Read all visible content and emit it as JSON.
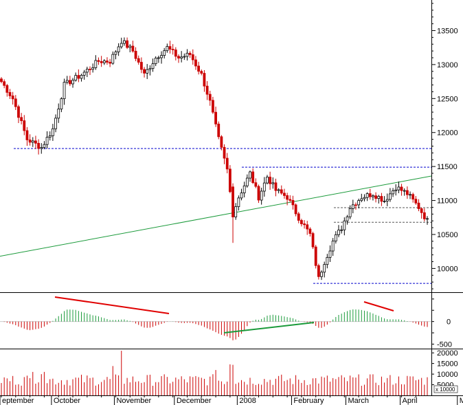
{
  "chart_data": {
    "type": "candlestick",
    "price_panel": {
      "ylim": [
        9650,
        13950
      ],
      "yticks": [
        10000,
        10500,
        11000,
        11500,
        12000,
        12500,
        13000,
        13500
      ],
      "support_resistance_levels": [
        11765,
        11490,
        10895,
        10680,
        9780
      ],
      "trendline": {
        "start": 10180,
        "end": 11360
      },
      "up_color": "#000000",
      "down_color": "#cc0000",
      "dashed_line_color": "#0000cc",
      "trendline_color": "#1a9a3a",
      "anchors": [
        {
          "i": 0,
          "c": 12750
        },
        {
          "i": 4,
          "c": 12500
        },
        {
          "i": 9,
          "c": 11900
        },
        {
          "i": 14,
          "c": 11780
        },
        {
          "i": 18,
          "c": 12050
        },
        {
          "i": 22,
          "c": 12700
        },
        {
          "i": 28,
          "c": 12850
        },
        {
          "i": 34,
          "c": 13050
        },
        {
          "i": 38,
          "c": 13050
        },
        {
          "i": 42,
          "c": 13350
        },
        {
          "i": 46,
          "c": 13200
        },
        {
          "i": 50,
          "c": 12850
        },
        {
          "i": 54,
          "c": 13100
        },
        {
          "i": 58,
          "c": 13250
        },
        {
          "i": 62,
          "c": 13100
        },
        {
          "i": 66,
          "c": 13150
        },
        {
          "i": 70,
          "c": 12850
        },
        {
          "i": 73,
          "c": 12450
        },
        {
          "i": 76,
          "c": 11900
        },
        {
          "i": 79,
          "c": 11450
        },
        {
          "i": 81,
          "c": 10800
        },
        {
          "i": 83,
          "c": 11050
        },
        {
          "i": 87,
          "c": 11400
        },
        {
          "i": 90,
          "c": 11050
        },
        {
          "i": 93,
          "c": 11350
        },
        {
          "i": 96,
          "c": 11150
        },
        {
          "i": 100,
          "c": 11050
        },
        {
          "i": 104,
          "c": 10750
        },
        {
          "i": 108,
          "c": 10500
        },
        {
          "i": 111,
          "c": 9850
        },
        {
          "i": 113,
          "c": 10100
        },
        {
          "i": 116,
          "c": 10400
        },
        {
          "i": 119,
          "c": 10600
        },
        {
          "i": 122,
          "c": 10900
        },
        {
          "i": 126,
          "c": 11050
        },
        {
          "i": 130,
          "c": 11100
        },
        {
          "i": 134,
          "c": 11000
        },
        {
          "i": 138,
          "c": 11200
        },
        {
          "i": 142,
          "c": 11100
        },
        {
          "i": 146,
          "c": 10900
        },
        {
          "i": 149,
          "c": 10700
        }
      ]
    },
    "macd_panel": {
      "ylim": [
        -600,
        650
      ],
      "yticks": [
        -500,
        0
      ],
      "histogram_up_color": "#1a9a3a",
      "histogram_down_color": "#cc0000",
      "trendline_color_red": "#e00000",
      "trendline_color_green": "#1a9a3a"
    },
    "volume_panel": {
      "ylim": [
        0,
        22000
      ],
      "yticks": [
        5000,
        10000,
        15000,
        20000
      ],
      "scale_note": "x 10000",
      "bar_color": "#cc0000"
    },
    "x_axis": {
      "months": [
        "eptember",
        "October",
        "November",
        "December",
        "2008",
        "February",
        "March",
        "April",
        "May"
      ]
    }
  }
}
